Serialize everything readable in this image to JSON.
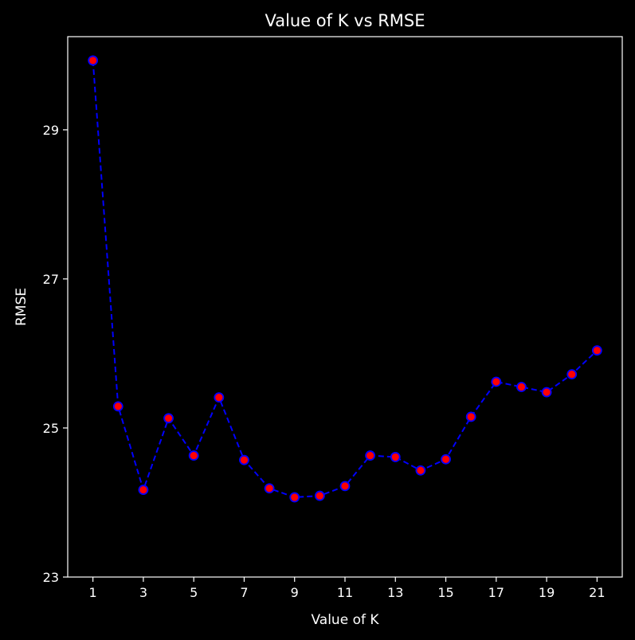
{
  "chart_data": {
    "type": "line",
    "title": "Value of K vs RMSE",
    "xlabel": "Value of K",
    "ylabel": "RMSE",
    "xlim": [
      0,
      22
    ],
    "ylim": [
      23,
      30.25
    ],
    "xticks": [
      1,
      3,
      5,
      7,
      9,
      11,
      13,
      15,
      17,
      19,
      21
    ],
    "yticks": [
      23,
      25,
      27,
      29
    ],
    "grid": false,
    "legend": "none",
    "style": {
      "background": "#000000",
      "axis_color": "#ffffff",
      "line_color": "#0000ff",
      "line_style": "dashed",
      "marker_face": "#ff0000",
      "marker_edge": "#0000ff"
    },
    "series": [
      {
        "x": [
          1,
          2,
          3,
          4,
          5,
          6,
          7,
          8,
          9,
          10,
          11,
          12,
          13,
          14,
          15,
          16,
          17,
          18,
          19,
          20,
          21
        ],
        "values": [
          29.93,
          25.29,
          24.17,
          25.13,
          24.63,
          25.41,
          24.57,
          24.19,
          24.07,
          24.09,
          24.22,
          24.63,
          24.61,
          24.43,
          24.58,
          25.15,
          25.62,
          25.55,
          25.48,
          25.72,
          26.04
        ]
      }
    ]
  }
}
